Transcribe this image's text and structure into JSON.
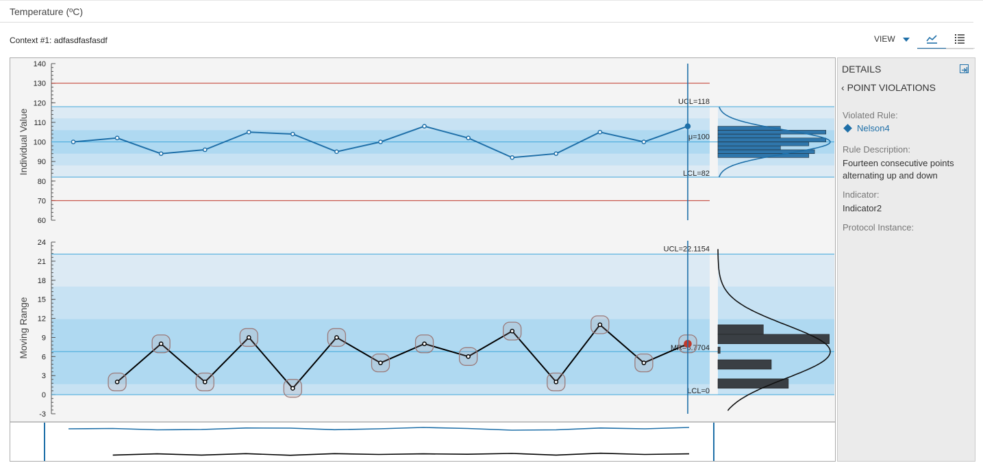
{
  "header": {
    "title": "Temperature (ºC)",
    "context": "Context #1: adfasdfasfasdf",
    "view_label": "VIEW",
    "chart_tab_icon": "line-chart-icon",
    "list_tab_icon": "list-icon"
  },
  "details": {
    "title": "DETAILS",
    "collapse_icon": "collapse-panel-icon",
    "back_label": "POINT VIOLATIONS",
    "violated_rule_label": "Violated Rule:",
    "violated_rule_value": "Nelson4",
    "rule_description_label": "Rule Description:",
    "rule_description_value": "Fourteen consecutive points alternating up and down",
    "indicator_label": "Indicator:",
    "indicator_value": "Indicator2",
    "protocol_label": "Protocol Instance:"
  },
  "colors": {
    "accent": "#1e6fa8",
    "spec_limit": "#c0392b",
    "mr_line": "#000000",
    "violation_ring": "#9a7a7a",
    "selected_point": "#c0392b",
    "hist_iv": "#2f76ab",
    "hist_mr": "#3a3f44"
  },
  "chart_data": [
    {
      "type": "line",
      "ylabel": "Individual Value",
      "ylim": [
        60,
        140
      ],
      "yticks": [
        60,
        70,
        80,
        90,
        100,
        110,
        120,
        130,
        140
      ],
      "series": [
        {
          "values": [
            100,
            102,
            94,
            96,
            105,
            104,
            95,
            100,
            108,
            102,
            92,
            94,
            105,
            100,
            108
          ]
        }
      ],
      "control_limits": {
        "ucl": 118,
        "mean": 100,
        "lcl": 82,
        "ucl_label": "UCL=118",
        "mean_label": "μ=100",
        "lcl_label": "LCL=82"
      },
      "spec_limits": [
        130,
        70
      ],
      "selected_index": 14,
      "histogram": {
        "bins": [
          [
            92,
            94,
            0.8
          ],
          [
            94,
            96,
            0.85
          ],
          [
            96,
            98,
            0.55
          ],
          [
            98,
            100,
            0.8
          ],
          [
            100,
            102,
            0.95
          ],
          [
            102,
            104,
            0.55
          ],
          [
            104,
            106,
            0.95
          ],
          [
            106,
            108,
            0.55
          ]
        ]
      }
    },
    {
      "type": "line",
      "ylabel": "Moving Range",
      "ylim": [
        -3,
        24
      ],
      "yticks": [
        -3,
        0,
        3,
        6,
        9,
        12,
        15,
        18,
        21,
        24
      ],
      "series": [
        {
          "values": [
            null,
            2,
            8,
            2,
            9,
            1,
            9,
            5,
            8,
            6,
            10,
            2,
            11,
            5,
            8
          ]
        }
      ],
      "control_limits": {
        "ucl": 22.1154,
        "mean": 6.7704,
        "lcl": 0,
        "ucl_label": "UCL=22.1154",
        "mean_label": "MR=6.7704",
        "lcl_label": "LCL=0"
      },
      "violations": [
        1,
        2,
        3,
        4,
        5,
        6,
        7,
        8,
        9,
        10,
        11,
        12,
        13,
        14
      ],
      "selected_index": 14,
      "histogram": {
        "bins": [
          [
            1,
            2.5,
            0.62
          ],
          [
            4,
            5.5,
            0.47
          ],
          [
            6.5,
            7.5,
            0.02
          ],
          [
            8,
            9.5,
            0.98
          ],
          [
            9.5,
            11,
            0.4
          ]
        ]
      }
    }
  ]
}
